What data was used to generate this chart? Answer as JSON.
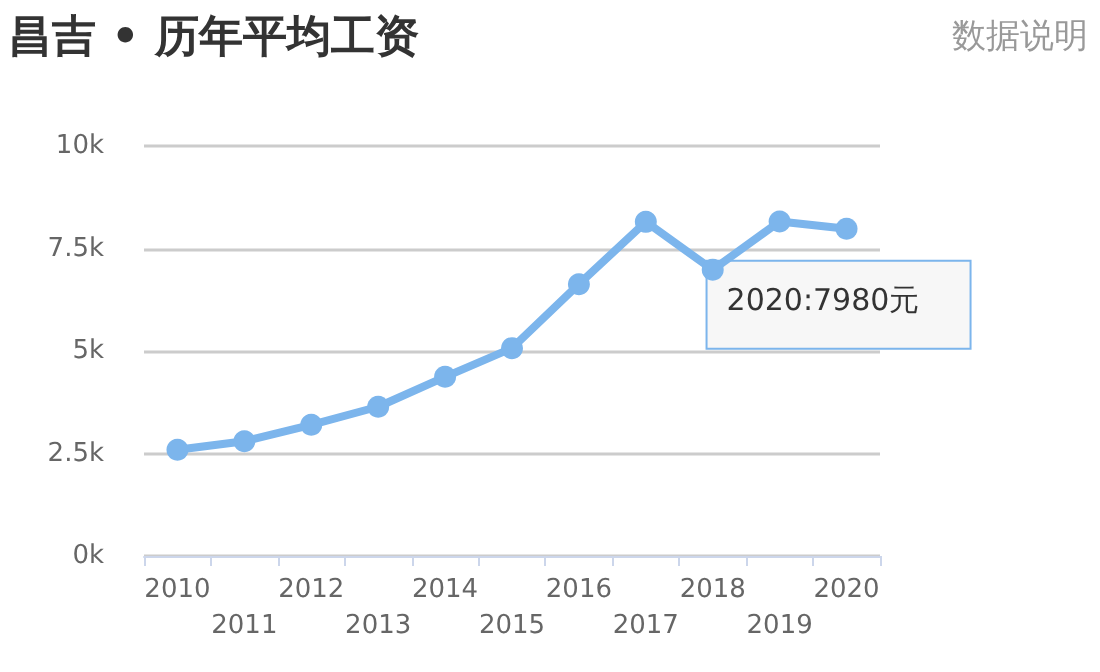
{
  "chart_data": {
    "type": "line",
    "title": "昌吉 • 历年平均工资",
    "categories": [
      "2010",
      "2011",
      "2012",
      "2013",
      "2014",
      "2015",
      "2016",
      "2017",
      "2018",
      "2019",
      "2020"
    ],
    "series": [
      {
        "color": "#7cb5ec",
        "values": [
          2590,
          2800,
          3200,
          3640,
          4370,
          5070,
          6630,
          8150,
          6980,
          8160,
          7980
        ]
      }
    ],
    "ylim": [
      0,
      10000
    ],
    "yticks": [
      {
        "value": 0,
        "label": "0k"
      },
      {
        "value": 2500,
        "label": "2.5k"
      },
      {
        "value": 5000,
        "label": "5k"
      },
      {
        "value": 7500,
        "label": "7.5k"
      },
      {
        "value": 10000,
        "label": "10k"
      }
    ],
    "grid": "y",
    "marker": "circle",
    "line_style": "solid",
    "annotations": [
      "数据说明",
      {
        "text": "2020:7980元",
        "x": "2020",
        "y": 7980
      }
    ]
  }
}
